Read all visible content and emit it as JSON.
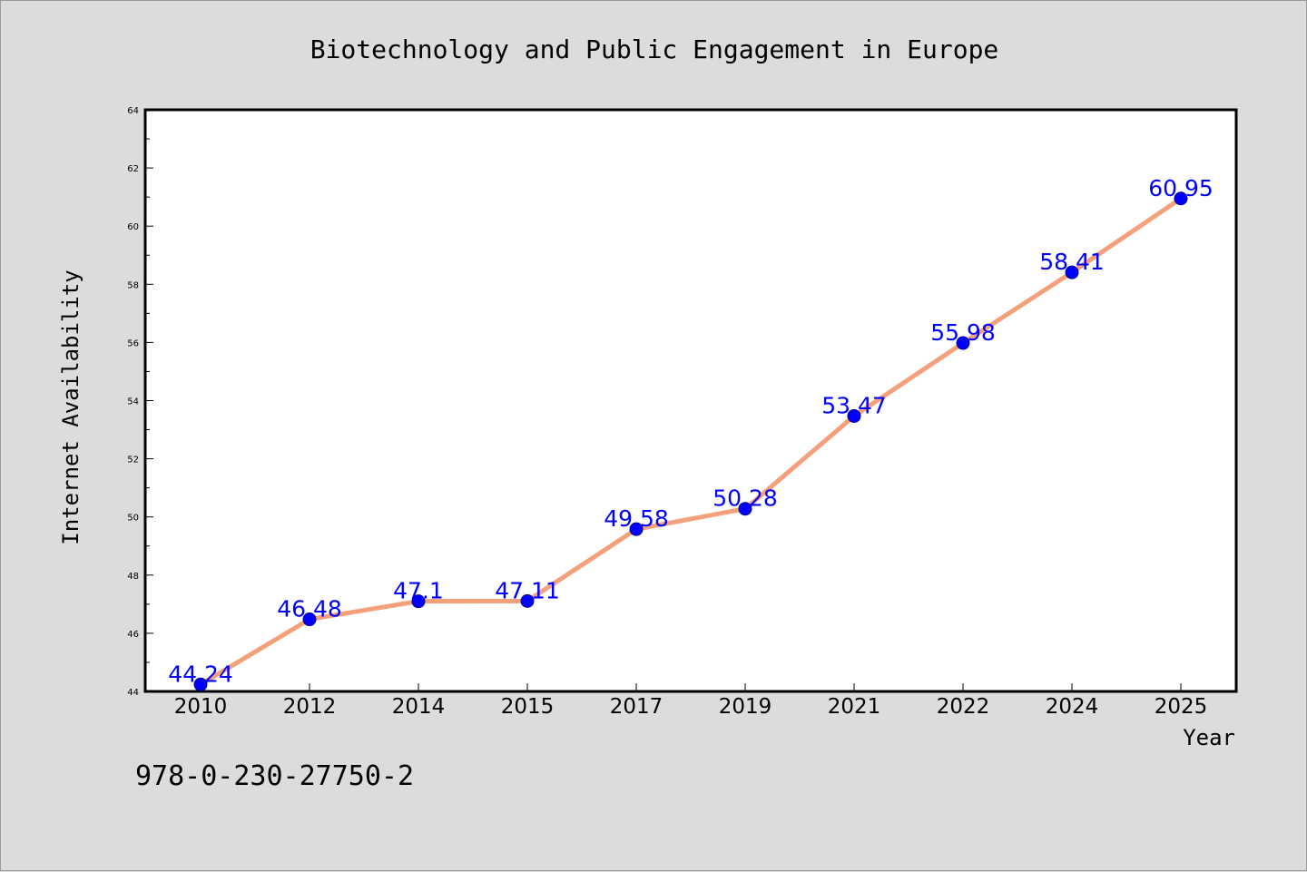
{
  "chart_data": {
    "type": "line",
    "title": "Biotechnology and Public Engagement in Europe",
    "xlabel": "Year",
    "ylabel": "Internet Availability",
    "categories": [
      "2010",
      "2012",
      "2014",
      "2015",
      "2017",
      "2019",
      "2021",
      "2022",
      "2024",
      "2025"
    ],
    "values": [
      44.24,
      46.48,
      47.1,
      47.11,
      49.58,
      50.28,
      53.47,
      55.98,
      58.41,
      60.95
    ],
    "data_labels": [
      "44.24",
      "46.48",
      "47.1",
      "47.11",
      "49.58",
      "50.28",
      "53.47",
      "55.98",
      "58.41",
      "60.95"
    ],
    "ylim": [
      44,
      64
    ],
    "y_major_ticks": [
      44,
      46,
      48,
      50,
      52,
      54,
      56,
      58,
      60,
      62,
      64
    ],
    "y_minor_ticks": [
      45,
      47,
      49,
      51,
      53,
      55,
      57,
      59,
      61,
      63
    ],
    "grid": false,
    "legend": "none",
    "colors": {
      "line": "#f4a07a",
      "marker": "#0000ff",
      "marker_edge": "#00008b",
      "data_label": "#0000ff",
      "background": "#dcdcdc",
      "plot_background": "#ffffff",
      "axes": "#000000"
    }
  },
  "footer_text": "978-0-230-27750-2"
}
